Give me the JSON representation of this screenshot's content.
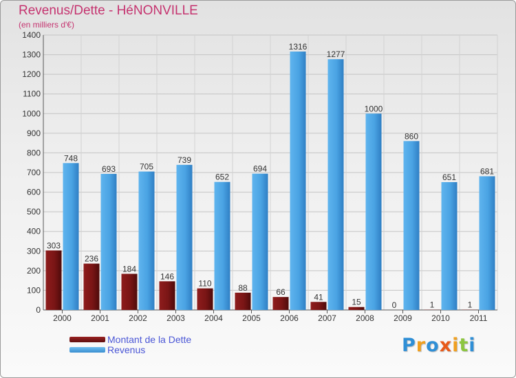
{
  "chart": {
    "title": "Revenus/Dette - HéNONVILLE",
    "subtitle": "(en milliers d'€)"
  },
  "legend": {
    "debt_label": "Montant de la Dette",
    "revenue_label": "Revenus"
  },
  "logo": {
    "text": "Proxiti",
    "letters": [
      {
        "ch": "P",
        "color": "#2f8fd6"
      },
      {
        "ch": "r",
        "color": "#f0a020"
      },
      {
        "ch": "o",
        "color": "#2f8fd6"
      },
      {
        "ch": "x",
        "color": "#e85a1a"
      },
      {
        "ch": "i",
        "color": "#f0a020"
      },
      {
        "ch": "t",
        "color": "#8cc63f"
      },
      {
        "ch": "i",
        "color": "#2f8fd6"
      }
    ]
  },
  "colors": {
    "debt": "#7a1515",
    "revenue": "#4aa3e3",
    "title": "#c5336f",
    "legend_text": "#4a56d6"
  },
  "chart_data": {
    "type": "bar",
    "title": "Revenus/Dette - HéNONVILLE",
    "subtitle": "(en milliers d'€)",
    "xlabel": "",
    "ylabel": "",
    "ylim": [
      0,
      1400
    ],
    "yticks": [
      0,
      100,
      200,
      300,
      400,
      500,
      600,
      700,
      800,
      900,
      1000,
      1100,
      1200,
      1300,
      1400
    ],
    "categories": [
      "2000",
      "2001",
      "2002",
      "2003",
      "2004",
      "2005",
      "2006",
      "2007",
      "2008",
      "2009",
      "2010",
      "2011"
    ],
    "series": [
      {
        "name": "Montant de la Dette",
        "values": [
          303,
          236,
          184,
          146,
          110,
          88,
          66,
          41,
          15,
          0,
          1,
          1
        ]
      },
      {
        "name": "Revenus",
        "values": [
          748,
          693,
          705,
          739,
          652,
          694,
          1316,
          1277,
          1000,
          860,
          651,
          681
        ]
      }
    ],
    "grid": true,
    "legend_position": "bottom-left"
  }
}
